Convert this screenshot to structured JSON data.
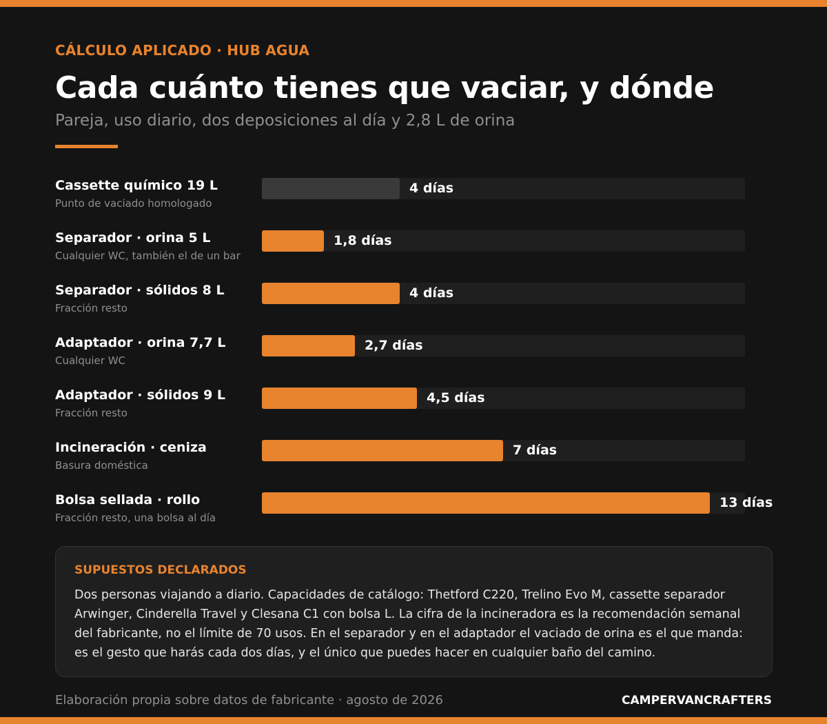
{
  "header": {
    "eyebrow": "CÁLCULO APLICADO · HUB AGUA",
    "title": "Cada cuánto tienes que vaciar, y dónde",
    "subtitle": "Pareja, uso diario, dos deposiciones al día y 2,8 L de orina"
  },
  "colors": {
    "accent": "#E8832E",
    "background": "#141414",
    "track": "#1f1f1f",
    "reference_bar": "#3a3a3a"
  },
  "chart_data": {
    "type": "bar",
    "orientation": "horizontal",
    "categories": [
      "Cassette químico 19 L",
      "Separador · orina 5 L",
      "Separador · sólidos 8 L",
      "Adaptador · orina 7,7 L",
      "Adaptador · sólidos 9 L",
      "Incineración · ceniza",
      "Bolsa sellada · rollo"
    ],
    "sublabels": [
      "Punto de vaciado homologado",
      "Cualquier WC, también el de un bar",
      "Fracción resto",
      "Cualquier WC",
      "Fracción resto",
      "Basura doméstica",
      "Fracción resto, una bolsa al día"
    ],
    "values": [
      4,
      1.8,
      4,
      2.7,
      4.5,
      7,
      13
    ],
    "value_labels": [
      "4 días",
      "1,8 días",
      "4 días",
      "2,7 días",
      "4,5 días",
      "7 días",
      "13 días"
    ],
    "highlight": [
      false,
      true,
      true,
      true,
      true,
      true,
      true
    ],
    "xlim": [
      0,
      14
    ],
    "grid": false
  },
  "notes": {
    "title": "SUPUESTOS DECLARADOS",
    "text": "Dos personas viajando a diario. Capacidades de catálogo: Thetford C220, Trelino Evo M, cassette separador Arwinger, Cinderella Travel y Clesana C1 con bolsa L. La cifra de la incineradora es la recomendación semanal del fabricante, no el límite de 70 usos. En el separador y en el adaptador el vaciado de orina es el que manda: es el gesto que harás cada dos días, y el único que puedes hacer en cualquier baño del camino."
  },
  "footer": {
    "source": "Elaboración propia sobre datos de fabricante · agosto de 2026",
    "brand": "CAMPERVANCRAFTERS"
  }
}
